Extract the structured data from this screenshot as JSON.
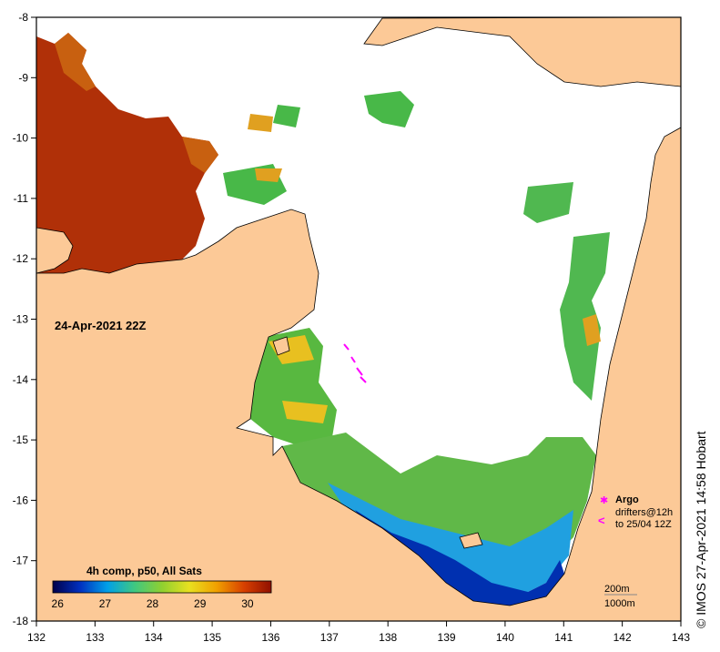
{
  "map": {
    "date_label": "24-Apr-2021 22Z",
    "credit": "© IMOS 27-Apr-2021 14:58 Hobart",
    "lon_ticks": [
      "132",
      "133",
      "134",
      "135",
      "136",
      "137",
      "138",
      "139",
      "140",
      "141",
      "142",
      "143"
    ],
    "lat_ticks": [
      "-8",
      "-9",
      "-10",
      "-11",
      "-12",
      "-13",
      "-14",
      "-15",
      "-16",
      "-17",
      "-18"
    ],
    "lon_range": [
      132,
      143
    ],
    "lat_range": [
      -8,
      -18
    ],
    "colorbar": {
      "title": "4h comp, p50, All Sats",
      "labels": [
        "26",
        "27",
        "28",
        "29",
        "30"
      ],
      "range": [
        25.9,
        30.5
      ],
      "colors": [
        "#00004a",
        "#0030c0",
        "#00a0e8",
        "#40c880",
        "#90d030",
        "#e8e020",
        "#f0a000",
        "#d84000",
        "#901000"
      ]
    },
    "legend": {
      "argo_label": "Argo",
      "drifters_label": "drifters@12h",
      "drifters_sub": "to 25/04 12Z",
      "contour1": "200m",
      "contour2": "1000m"
    },
    "colors": {
      "land": "#fcc997",
      "no_data": "#ffffff",
      "argo": "#ff00ff",
      "coast": "#000000"
    }
  }
}
